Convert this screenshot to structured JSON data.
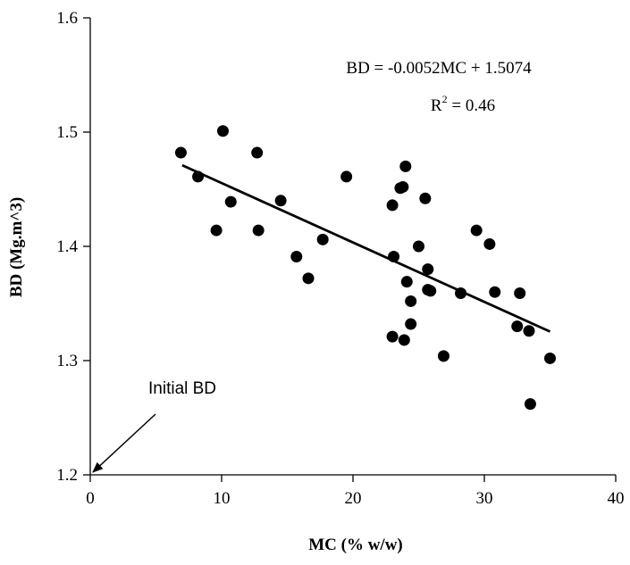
{
  "chart_data": {
    "type": "scatter",
    "xlabel": "MC (% w/w)",
    "ylabel": "BD (Mg.m^3)",
    "xlim": [
      0,
      40
    ],
    "ylim": [
      1.2,
      1.6
    ],
    "x_ticks": [
      0,
      10,
      20,
      30,
      40
    ],
    "y_ticks": [
      1.2,
      1.3,
      1.4,
      1.5,
      1.6
    ],
    "x_tick_labels": [
      "0",
      "10",
      "20",
      "30",
      "40"
    ],
    "y_tick_labels": [
      "1.2",
      "1.3",
      "1.4",
      "1.5",
      "1.6"
    ],
    "grid": false,
    "points": [
      {
        "x": 6.9,
        "y": 1.482
      },
      {
        "x": 8.2,
        "y": 1.461
      },
      {
        "x": 9.6,
        "y": 1.414
      },
      {
        "x": 10.1,
        "y": 1.501
      },
      {
        "x": 10.7,
        "y": 1.439
      },
      {
        "x": 12.7,
        "y": 1.482
      },
      {
        "x": 12.8,
        "y": 1.414
      },
      {
        "x": 14.5,
        "y": 1.44
      },
      {
        "x": 15.7,
        "y": 1.391
      },
      {
        "x": 16.6,
        "y": 1.372
      },
      {
        "x": 17.7,
        "y": 1.406
      },
      {
        "x": 19.5,
        "y": 1.461
      },
      {
        "x": 23.0,
        "y": 1.436
      },
      {
        "x": 23.1,
        "y": 1.391
      },
      {
        "x": 23.0,
        "y": 1.321
      },
      {
        "x": 23.6,
        "y": 1.451
      },
      {
        "x": 23.8,
        "y": 1.452
      },
      {
        "x": 24.0,
        "y": 1.47
      },
      {
        "x": 24.1,
        "y": 1.369
      },
      {
        "x": 23.9,
        "y": 1.318
      },
      {
        "x": 24.4,
        "y": 1.352
      },
      {
        "x": 24.4,
        "y": 1.332
      },
      {
        "x": 25.0,
        "y": 1.4
      },
      {
        "x": 25.5,
        "y": 1.442
      },
      {
        "x": 25.7,
        "y": 1.38
      },
      {
        "x": 25.7,
        "y": 1.362
      },
      {
        "x": 25.9,
        "y": 1.361
      },
      {
        "x": 26.9,
        "y": 1.304
      },
      {
        "x": 28.2,
        "y": 1.359
      },
      {
        "x": 29.4,
        "y": 1.414
      },
      {
        "x": 30.4,
        "y": 1.402
      },
      {
        "x": 30.8,
        "y": 1.36
      },
      {
        "x": 32.5,
        "y": 1.33
      },
      {
        "x": 32.7,
        "y": 1.359
      },
      {
        "x": 33.4,
        "y": 1.326
      },
      {
        "x": 33.5,
        "y": 1.262
      },
      {
        "x": 35.0,
        "y": 1.302
      }
    ],
    "trendline": {
      "x_range": [
        7,
        35
      ],
      "slope": -0.0052,
      "intercept": 1.5074
    },
    "equation": {
      "line1": "BD = -0.0052MC + 1.5074",
      "r2_prefix": "R",
      "r2_sup": "2",
      "r2_suffix": " = 0.46"
    },
    "annotation": {
      "text": "Initial BD",
      "target": {
        "x": 0,
        "y": 1.2
      }
    }
  }
}
